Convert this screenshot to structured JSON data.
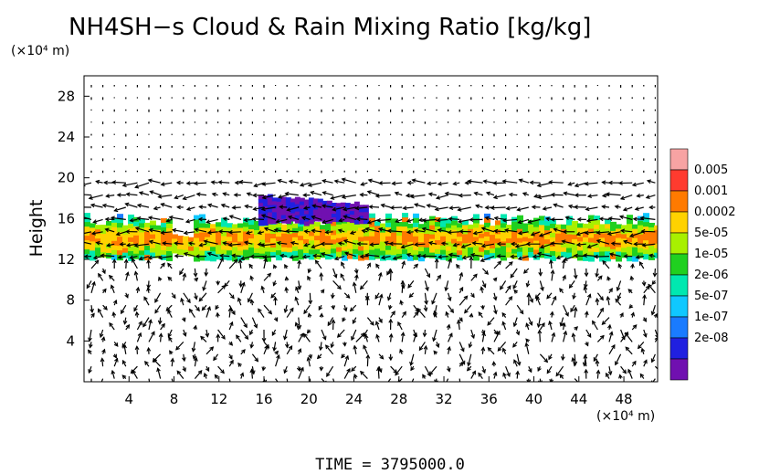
{
  "chart_data": {
    "type": "heatmap",
    "title": "NH4SH−s Cloud & Rain Mixing Ratio [kg/kg]",
    "ylabel": "Height",
    "y_unit": "(×10⁴ m)",
    "x_unit": "(×10⁴ m)",
    "footer": "TIME = 3795000.0",
    "xlim": [
      0,
      51
    ],
    "ylim": [
      0,
      30
    ],
    "x_ticks": [
      4,
      8,
      12,
      16,
      20,
      24,
      28,
      32,
      36,
      40,
      44,
      48
    ],
    "y_ticks": [
      4,
      8,
      12,
      16,
      20,
      24,
      28
    ],
    "colorbar": {
      "levels": [
        "0.005",
        "0.001",
        "0.0002",
        "5e-05",
        "1e-05",
        "2e-06",
        "5e-07",
        "1e-07",
        "2e-08"
      ],
      "colors": [
        "#f7a3a3",
        "#ff3b2f",
        "#ff7a00",
        "#ffd200",
        "#a8f000",
        "#20d020",
        "#00e8b0",
        "#10c8ff",
        "#1a7bff",
        "#2020e0",
        "#7010b0"
      ]
    },
    "cloud_layer": {
      "y_bottom": 12.3,
      "y_top": 16.2,
      "x_extent": [
        0,
        51
      ],
      "upper_wisp": {
        "x": [
          15.5,
          25
        ],
        "y": [
          16.5,
          18.5
        ]
      }
    },
    "vectors": "wind vector field on regular grid (overlay)"
  }
}
